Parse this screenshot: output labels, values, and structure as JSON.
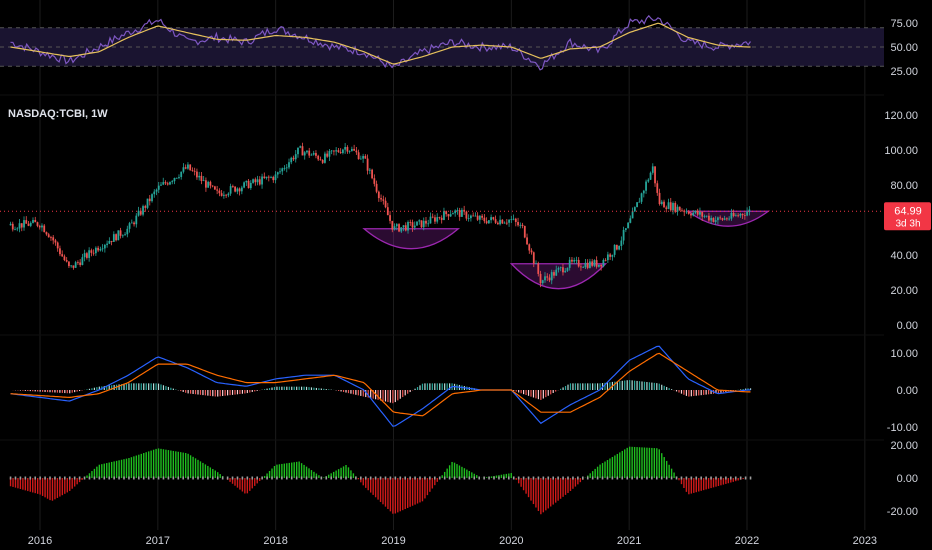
{
  "header": {
    "symbol": "NASDAQ:TCBI, 1W"
  },
  "price_label": {
    "value": "64.99",
    "countdown": "3d 3h"
  },
  "colors": {
    "up": "#26a69a",
    "down": "#ef5350",
    "rsi": "#7e57c2",
    "rsi_ma": "#e6c15c",
    "macd": "#2962ff",
    "signal": "#ff6d00",
    "osc_up": "#1fbf1f",
    "osc_down": "#d11a1a",
    "pattern": "#9c27b0",
    "label_bg": "#f23645",
    "grid": "#1c1c1c"
  },
  "chart_data": [
    {
      "type": "line",
      "pane": "rsi",
      "y_ticks": [
        "75.00",
        "50.00",
        "25.00"
      ],
      "ylim": [
        25,
        75
      ],
      "bands": [
        30,
        50,
        70
      ],
      "series": [
        {
          "x": [
            2015.75,
            2016.0,
            2016.25,
            2016.5,
            2016.75,
            2017.0,
            2017.25,
            2017.5,
            2017.75,
            2018.0,
            2018.25,
            2018.5,
            2018.75,
            2019.0,
            2019.25,
            2019.5,
            2019.75,
            2020.0,
            2020.25,
            2020.5,
            2020.75,
            2021.0,
            2021.25,
            2021.5,
            2021.75,
            2022.0
          ],
          "values": [
            55,
            45,
            35,
            50,
            65,
            78,
            55,
            60,
            55,
            70,
            60,
            50,
            45,
            28,
            45,
            55,
            50,
            50,
            30,
            55,
            45,
            75,
            80,
            55,
            50,
            55
          ]
        },
        {
          "x": [
            2015.75,
            2016.0,
            2016.25,
            2016.5,
            2016.75,
            2017.0,
            2017.25,
            2017.5,
            2017.75,
            2018.0,
            2018.25,
            2018.5,
            2018.75,
            2019.0,
            2019.25,
            2019.5,
            2019.75,
            2020.0,
            2020.25,
            2020.5,
            2020.75,
            2021.0,
            2021.25,
            2021.5,
            2021.75,
            2022.0
          ],
          "values": [
            50,
            45,
            40,
            45,
            60,
            72,
            65,
            58,
            57,
            62,
            60,
            55,
            45,
            32,
            40,
            50,
            52,
            50,
            38,
            48,
            50,
            65,
            75,
            60,
            52,
            50
          ]
        }
      ]
    },
    {
      "type": "candlestick",
      "pane": "price",
      "x_ticks": [
        "2016",
        "2017",
        "2018",
        "2019",
        "2020",
        "2021",
        "2022",
        "2023"
      ],
      "y_ticks": [
        "120.00",
        "100.00",
        "80.00",
        "60.00",
        "40.00",
        "20.00",
        "0.00"
      ],
      "ylim": [
        0,
        120
      ],
      "last_price": 64.99,
      "ohlc_x": [
        2015.75,
        2016.0,
        2016.1,
        2016.25,
        2016.5,
        2016.75,
        2017.0,
        2017.25,
        2017.5,
        2017.75,
        2018.0,
        2018.2,
        2018.4,
        2018.6,
        2018.75,
        2019.0,
        2019.25,
        2019.5,
        2019.75,
        2020.0,
        2020.1,
        2020.25,
        2020.5,
        2020.75,
        2020.9,
        2021.0,
        2021.2,
        2021.25,
        2021.5,
        2021.75,
        2021.9,
        2022.0
      ],
      "ohlc_close": [
        57,
        58,
        50,
        32,
        45,
        55,
        78,
        90,
        75,
        80,
        85,
        100,
        95,
        102,
        95,
        55,
        58,
        65,
        60,
        60,
        55,
        25,
        35,
        35,
        45,
        58,
        90,
        70,
        65,
        60,
        62,
        65
      ],
      "patterns": [
        {
          "name": "rounding bottom",
          "x_start": 2018.75,
          "x_end": 2019.55,
          "top": 55,
          "bottom": 43
        },
        {
          "name": "rounding bottom",
          "x_start": 2020.0,
          "x_end": 2020.8,
          "top": 35,
          "bottom": 20
        },
        {
          "name": "rounding bottom",
          "x_start": 2021.5,
          "x_end": 2022.18,
          "top": 65,
          "bottom": 56
        }
      ]
    },
    {
      "type": "line",
      "pane": "macd",
      "y_ticks": [
        "10.00",
        "0.00",
        "-10.00"
      ],
      "ylim": [
        -12,
        12
      ],
      "x": [
        2015.75,
        2016.0,
        2016.25,
        2016.5,
        2016.75,
        2017.0,
        2017.25,
        2017.5,
        2017.75,
        2018.0,
        2018.25,
        2018.5,
        2018.75,
        2019.0,
        2019.25,
        2019.5,
        2019.75,
        2020.0,
        2020.25,
        2020.5,
        2020.75,
        2021.0,
        2021.25,
        2021.5,
        2021.75,
        2022.0
      ],
      "series": [
        {
          "values": [
            -1,
            -2,
            -3,
            0,
            4,
            9,
            6,
            2,
            1,
            3,
            4,
            4,
            0,
            -10,
            -5,
            1,
            0,
            0,
            -9,
            -4,
            0,
            8,
            12,
            3,
            -1,
            0
          ]
        },
        {
          "values": [
            -1,
            -1.5,
            -2,
            -1,
            2,
            7,
            7,
            4,
            2,
            2,
            3,
            4,
            2,
            -6,
            -7,
            -1,
            0,
            0,
            -6,
            -6,
            -2,
            5,
            10,
            5,
            0,
            -0.5
          ]
        }
      ]
    },
    {
      "type": "bar",
      "pane": "oscillator",
      "y_ticks": [
        "20.00",
        "0.00",
        "-20.00"
      ],
      "ylim": [
        -25,
        25
      ],
      "x": [
        2015.75,
        2016.0,
        2016.1,
        2016.25,
        2016.5,
        2016.75,
        2017.0,
        2017.25,
        2017.5,
        2017.75,
        2018.0,
        2018.2,
        2018.4,
        2018.6,
        2018.75,
        2019.0,
        2019.25,
        2019.5,
        2019.75,
        2020.0,
        2020.25,
        2020.5,
        2020.75,
        2021.0,
        2021.25,
        2021.5,
        2021.75,
        2022.0
      ],
      "values": [
        -5,
        -10,
        -14,
        -8,
        8,
        12,
        18,
        15,
        4,
        -10,
        8,
        10,
        0,
        8,
        -5,
        -22,
        -14,
        10,
        0,
        3,
        -22,
        -8,
        8,
        19,
        18,
        -10,
        -5,
        0
      ]
    }
  ]
}
